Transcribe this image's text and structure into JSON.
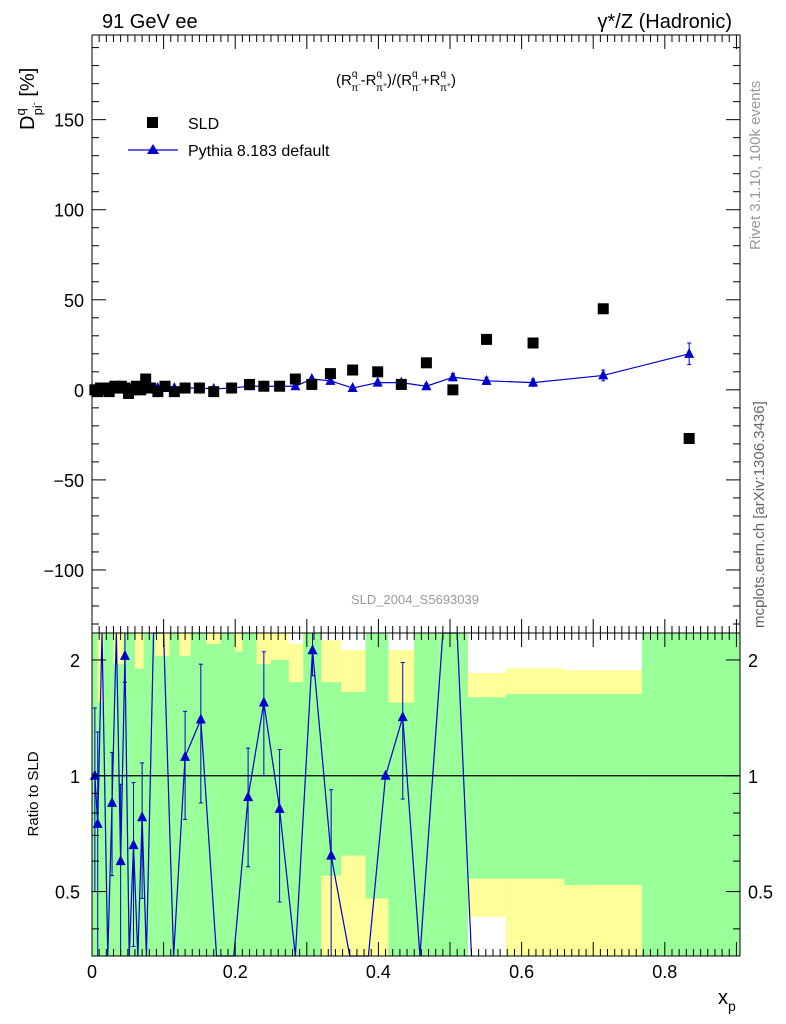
{
  "header": {
    "left_title": "91 GeV ee",
    "right_title": "γ*/Z (Hadronic)"
  },
  "side_labels": {
    "rivet": "Rivet 3.1.10,  100k events",
    "mcplots": "mcplots.cern.ch [arXiv:1306.3436]"
  },
  "watermark": "SLD_2004_S5693039",
  "chart_data": [
    {
      "type": "scatter",
      "title": "(Rπ⁻ − Rπ⁺)/(Rπ⁻ + Rπ⁺)",
      "formula": {
        "a": "(R",
        "b": "q",
        "c": "π",
        "d": "-",
        "e": "-R",
        "f": "π",
        "g": "+",
        "h": ")/(R",
        "i": "+R",
        "j": ")"
      },
      "ylabel": {
        "main": "D",
        "sup": "q",
        "sub": "pi",
        "subsup": "-",
        "unit": " [%]"
      },
      "xlabel": {
        "main": "x",
        "sub": "p"
      },
      "xlim": [
        0,
        0.905
      ],
      "ylim": [
        -135,
        197
      ],
      "yticks": [
        -100,
        -50,
        0,
        50,
        100,
        150
      ],
      "ytick_labels": [
        "−100",
        "−50",
        "0",
        "50",
        "100",
        "150"
      ],
      "legend": {
        "placement": "top-left",
        "entries": [
          "SLD",
          "Pythia 8.183 default"
        ]
      },
      "series": [
        {
          "name": "SLD",
          "marker": "square",
          "color": "#000000",
          "x": [
            0.004,
            0.008,
            0.012,
            0.016,
            0.02,
            0.024,
            0.028,
            0.032,
            0.036,
            0.041,
            0.046,
            0.051,
            0.056,
            0.062,
            0.068,
            0.075,
            0.082,
            0.092,
            0.102,
            0.115,
            0.13,
            0.15,
            0.17,
            0.195,
            0.22,
            0.24,
            0.262,
            0.284,
            0.307,
            0.333,
            0.364,
            0.399,
            0.432,
            0.467,
            0.504,
            0.551,
            0.616,
            0.714,
            0.834
          ],
          "y": [
            0,
            -1,
            1,
            0,
            1,
            -1,
            1,
            2,
            1,
            2,
            1,
            -2,
            0,
            2,
            0,
            6,
            1,
            -1,
            2,
            -1,
            1,
            1,
            -1,
            1,
            3,
            2,
            2,
            6,
            3,
            9,
            11,
            10,
            3,
            15,
            0,
            28,
            26,
            45,
            -27
          ]
        },
        {
          "name": "Pythia 8.183 default",
          "marker": "triangle",
          "color": "#0000cc",
          "x": [
            0.004,
            0.008,
            0.012,
            0.016,
            0.02,
            0.024,
            0.028,
            0.032,
            0.036,
            0.041,
            0.046,
            0.051,
            0.056,
            0.062,
            0.068,
            0.075,
            0.082,
            0.092,
            0.102,
            0.115,
            0.13,
            0.15,
            0.17,
            0.195,
            0.22,
            0.24,
            0.262,
            0.284,
            0.307,
            0.333,
            0.364,
            0.399,
            0.432,
            0.467,
            0.504,
            0.551,
            0.616,
            0.714,
            0.834
          ],
          "y": [
            0,
            0,
            0,
            0,
            0.5,
            0,
            0.5,
            1,
            1,
            1,
            1,
            0.5,
            0.5,
            1,
            0.5,
            1,
            1,
            1,
            1,
            1,
            1,
            1,
            0.5,
            1,
            2,
            2,
            2,
            2,
            6,
            5,
            1,
            4,
            4,
            2,
            7,
            5,
            4,
            8,
            20
          ],
          "yerr": [
            0.5,
            0.5,
            0.5,
            0.5,
            0.5,
            0.5,
            0.5,
            0.5,
            0.5,
            0.5,
            0.5,
            0.5,
            0.5,
            0.5,
            0.5,
            0.5,
            0.5,
            0.5,
            0.5,
            0.5,
            0.5,
            0.5,
            0.5,
            0.5,
            0.5,
            0.5,
            0.5,
            0.5,
            1,
            1,
            1,
            1,
            1,
            1.5,
            2,
            2,
            2,
            3,
            6
          ]
        }
      ]
    },
    {
      "type": "line",
      "ylabel": "Ratio to SLD",
      "xlim": [
        0,
        0.905
      ],
      "ylim": [
        0.34,
        2.35
      ],
      "yticks": [
        0.5,
        1,
        2
      ],
      "ytick_labels": [
        "0.5",
        "1",
        "2"
      ],
      "xticks": [
        0,
        0.2,
        0.4,
        0.6,
        0.8
      ],
      "xtick_labels": [
        "0",
        "0.2",
        "0.4",
        "0.6",
        "0.8"
      ],
      "reference_line": 1,
      "bands": [
        {
          "x0": 0.0,
          "x1": 0.008,
          "g_lo": 0.34,
          "g_hi": 2.35,
          "y_lo": 0.34,
          "y_hi": 2.35
        },
        {
          "x0": 0.008,
          "x1": 0.016,
          "g_lo": 0.34,
          "g_hi": 1.55,
          "y_lo": 0.34,
          "y_hi": 2.35
        },
        {
          "x0": 0.016,
          "x1": 0.03,
          "g_lo": 0.34,
          "g_hi": 2.35,
          "y_lo": 0.34,
          "y_hi": 2.35
        },
        {
          "x0": 0.03,
          "x1": 0.044,
          "g_lo": 0.34,
          "g_hi": 1.95,
          "y_lo": 0.34,
          "y_hi": 2.35
        },
        {
          "x0": 0.044,
          "x1": 0.06,
          "g_lo": 0.34,
          "g_hi": 2.35,
          "y_lo": 0.34,
          "y_hi": 2.35
        },
        {
          "x0": 0.06,
          "x1": 0.072,
          "g_lo": 0.34,
          "g_hi": 1.9,
          "y_lo": 0.34,
          "y_hi": 2.35
        },
        {
          "x0": 0.072,
          "x1": 0.088,
          "g_lo": 0.34,
          "g_hi": 2.35,
          "y_lo": 0.34,
          "y_hi": 2.35
        },
        {
          "x0": 0.088,
          "x1": 0.108,
          "g_lo": 0.34,
          "g_hi": 2.05,
          "y_lo": 0.34,
          "y_hi": 2.35
        },
        {
          "x0": 0.108,
          "x1": 0.122,
          "g_lo": 0.34,
          "g_hi": 2.35,
          "y_lo": 0.34,
          "y_hi": 2.35
        },
        {
          "x0": 0.122,
          "x1": 0.138,
          "g_lo": 0.34,
          "g_hi": 2.05,
          "y_lo": 0.34,
          "y_hi": 2.35
        },
        {
          "x0": 0.138,
          "x1": 0.16,
          "g_lo": 0.34,
          "g_hi": 2.35,
          "y_lo": 0.34,
          "y_hi": 2.35
        },
        {
          "x0": 0.16,
          "x1": 0.18,
          "g_lo": 0.34,
          "g_hi": 2.2,
          "y_lo": 0.34,
          "y_hi": 2.35
        },
        {
          "x0": 0.18,
          "x1": 0.2,
          "g_lo": 0.34,
          "g_hi": 2.35,
          "y_lo": 0.34,
          "y_hi": 2.35
        },
        {
          "x0": 0.2,
          "x1": 0.21,
          "g_lo": 0.34,
          "g_hi": 2.1,
          "y_lo": 0.34,
          "y_hi": 2.35
        },
        {
          "x0": 0.21,
          "x1": 0.23,
          "g_lo": 0.34,
          "g_hi": 2.35,
          "y_lo": 0.34,
          "y_hi": 2.35
        },
        {
          "x0": 0.23,
          "x1": 0.25,
          "g_lo": 0.34,
          "g_hi": 1.95,
          "y_lo": 0.34,
          "y_hi": 2.35
        },
        {
          "x0": 0.25,
          "x1": 0.275,
          "g_lo": 0.34,
          "g_hi": 2.0,
          "y_lo": 0.34,
          "y_hi": 2.35
        },
        {
          "x0": 0.275,
          "x1": 0.295,
          "g_lo": 0.34,
          "g_hi": 1.75,
          "y_lo": 0.34,
          "y_hi": 2.2
        },
        {
          "x0": 0.295,
          "x1": 0.32,
          "g_lo": 0.34,
          "g_hi": 2.35,
          "y_lo": 0.34,
          "y_hi": 2.35
        },
        {
          "x0": 0.32,
          "x1": 0.348,
          "g_lo": 0.55,
          "g_hi": 1.75,
          "y_lo": 0.34,
          "y_hi": 2.25
        },
        {
          "x0": 0.348,
          "x1": 0.382,
          "g_lo": 0.62,
          "g_hi": 1.65,
          "y_lo": 0.34,
          "y_hi": 2.12
        },
        {
          "x0": 0.382,
          "x1": 0.414,
          "g_lo": 0.48,
          "g_hi": 2.35,
          "y_lo": 0.34,
          "y_hi": 2.35
        },
        {
          "x0": 0.414,
          "x1": 0.45,
          "g_lo": 0.34,
          "g_hi": 1.55,
          "y_lo": 0.34,
          "y_hi": 2.12
        },
        {
          "x0": 0.45,
          "x1": 0.485,
          "g_lo": 0.34,
          "g_hi": 2.35,
          "y_lo": 0.34,
          "y_hi": 2.35
        },
        {
          "x0": 0.485,
          "x1": 0.525,
          "g_lo": 0.34,
          "g_hi": 2.35,
          "y_lo": 0.34,
          "y_hi": 2.35
        },
        {
          "x0": 0.525,
          "x1": 0.578,
          "g_lo": 0.54,
          "g_hi": 1.6,
          "y_lo": 0.43,
          "y_hi": 1.85
        },
        {
          "x0": 0.578,
          "x1": 0.66,
          "g_lo": 0.54,
          "g_hi": 1.63,
          "y_lo": 0.34,
          "y_hi": 1.9
        },
        {
          "x0": 0.66,
          "x1": 0.768,
          "g_lo": 0.52,
          "g_hi": 1.63,
          "y_lo": 0.34,
          "y_hi": 1.88
        },
        {
          "x0": 0.768,
          "x1": 0.905,
          "g_lo": 0.34,
          "g_hi": 2.35,
          "y_lo": 0.34,
          "y_hi": 2.35
        }
      ],
      "series": [
        {
          "name": "Pythia 8.183 default / SLD",
          "color": "#0000cc",
          "x": [
            0.004,
            0.008,
            0.014,
            0.022,
            0.028,
            0.034,
            0.04,
            0.046,
            0.052,
            0.058,
            0.064,
            0.07,
            0.076,
            0.086,
            0.1,
            0.114,
            0.13,
            0.152,
            0.174,
            0.198,
            0.218,
            0.24,
            0.262,
            0.284,
            0.308,
            0.334,
            0.36,
            0.386,
            0.41,
            0.434,
            0.458,
            0.49,
            0.51,
            0.53
          ],
          "y": [
            1.0,
            0.75,
            2.35,
            0.34,
            0.85,
            2.35,
            0.6,
            2.05,
            0.34,
            0.66,
            0.34,
            0.78,
            0.34,
            2.35,
            2.35,
            0.34,
            1.12,
            1.4,
            0.34,
            0.34,
            0.88,
            1.55,
            0.82,
            0.34,
            2.12,
            0.62,
            0.34,
            0.34,
            1.0,
            1.42,
            0.34,
            2.35,
            2.35,
            0.34
          ],
          "yerr": [
            0.5,
            0.55,
            0,
            0,
            0.3,
            0,
            0.35,
            0.3,
            0,
            0.3,
            0,
            0.3,
            0,
            0,
            0,
            0,
            0.35,
            0.55,
            0,
            0,
            0.3,
            0.55,
            0.35,
            0,
            0.3,
            0.3,
            0,
            0,
            0,
            0.55,
            0,
            0,
            0,
            0
          ]
        }
      ]
    }
  ]
}
